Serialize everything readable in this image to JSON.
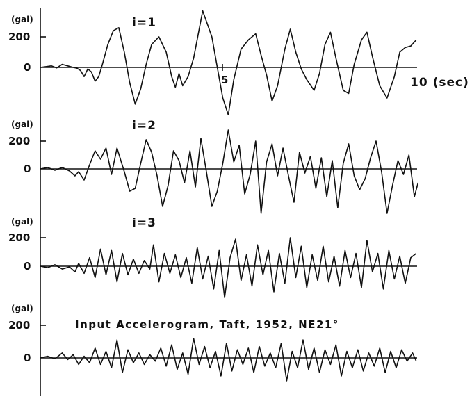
{
  "chart_data": {
    "type": "line",
    "title": "Input Accelerogram, Taft, 1952, NE21°",
    "x_axis": {
      "label": "10 (sec)",
      "tick_labels": [
        "5"
      ],
      "range": [
        0,
        10
      ],
      "unit": "sec"
    },
    "y_axis": {
      "unit": "(gal)",
      "tick_labels": [
        "200",
        "0"
      ]
    },
    "panels": [
      {
        "label": "i=1",
        "unit": "(gal)",
        "y_ticks": [
          "200",
          "0"
        ],
        "keypoints": [
          [
            0,
            0
          ],
          [
            0.15,
            5
          ],
          [
            0.3,
            10
          ],
          [
            0.45,
            -3
          ],
          [
            0.6,
            20
          ],
          [
            0.75,
            10
          ],
          [
            0.9,
            0
          ],
          [
            1.0,
            -5
          ],
          [
            1.1,
            -20
          ],
          [
            1.2,
            -60
          ],
          [
            1.3,
            -10
          ],
          [
            1.4,
            -30
          ],
          [
            1.5,
            -90
          ],
          [
            1.6,
            -60
          ],
          [
            1.7,
            20
          ],
          [
            1.85,
            150
          ],
          [
            2.0,
            240
          ],
          [
            2.15,
            260
          ],
          [
            2.3,
            100
          ],
          [
            2.45,
            -100
          ],
          [
            2.6,
            -240
          ],
          [
            2.75,
            -140
          ],
          [
            2.9,
            20
          ],
          [
            3.05,
            150
          ],
          [
            3.25,
            200
          ],
          [
            3.45,
            100
          ],
          [
            3.6,
            -60
          ],
          [
            3.7,
            -130
          ],
          [
            3.8,
            -40
          ],
          [
            3.9,
            -120
          ],
          [
            4.05,
            -60
          ],
          [
            4.2,
            60
          ],
          [
            4.45,
            370
          ],
          [
            4.7,
            200
          ],
          [
            4.85,
            0
          ],
          [
            5.0,
            -200
          ],
          [
            5.15,
            -310
          ],
          [
            5.3,
            -80
          ],
          [
            5.5,
            120
          ],
          [
            5.7,
            180
          ],
          [
            5.9,
            220
          ],
          [
            6.05,
            80
          ],
          [
            6.2,
            -50
          ],
          [
            6.35,
            -220
          ],
          [
            6.5,
            -120
          ],
          [
            6.7,
            120
          ],
          [
            6.85,
            250
          ],
          [
            7.0,
            100
          ],
          [
            7.15,
            -10
          ],
          [
            7.3,
            -80
          ],
          [
            7.5,
            -150
          ],
          [
            7.65,
            -40
          ],
          [
            7.8,
            150
          ],
          [
            7.95,
            230
          ],
          [
            8.1,
            60
          ],
          [
            8.3,
            -150
          ],
          [
            8.45,
            -170
          ],
          [
            8.6,
            20
          ],
          [
            8.8,
            180
          ],
          [
            8.95,
            230
          ],
          [
            9.1,
            70
          ],
          [
            9.3,
            -120
          ],
          [
            9.5,
            -200
          ],
          [
            9.7,
            -60
          ],
          [
            9.85,
            100
          ],
          [
            10.0,
            130
          ],
          [
            10.15,
            140
          ],
          [
            10.3,
            180
          ]
        ]
      },
      {
        "label": "i=2",
        "unit": "(gal)",
        "y_ticks": [
          "200",
          "0"
        ],
        "keypoints": [
          [
            0,
            0
          ],
          [
            0.2,
            10
          ],
          [
            0.4,
            -10
          ],
          [
            0.6,
            10
          ],
          [
            0.8,
            -15
          ],
          [
            0.95,
            -50
          ],
          [
            1.05,
            -20
          ],
          [
            1.2,
            -80
          ],
          [
            1.35,
            30
          ],
          [
            1.5,
            130
          ],
          [
            1.65,
            70
          ],
          [
            1.8,
            150
          ],
          [
            1.95,
            -40
          ],
          [
            2.1,
            150
          ],
          [
            2.3,
            -20
          ],
          [
            2.45,
            -160
          ],
          [
            2.6,
            -140
          ],
          [
            2.75,
            40
          ],
          [
            2.9,
            210
          ],
          [
            3.05,
            120
          ],
          [
            3.2,
            -50
          ],
          [
            3.35,
            -270
          ],
          [
            3.5,
            -120
          ],
          [
            3.65,
            130
          ],
          [
            3.8,
            60
          ],
          [
            3.95,
            -100
          ],
          [
            4.1,
            130
          ],
          [
            4.25,
            -130
          ],
          [
            4.4,
            220
          ],
          [
            4.55,
            -20
          ],
          [
            4.7,
            -270
          ],
          [
            4.85,
            -160
          ],
          [
            5.0,
            40
          ],
          [
            5.15,
            280
          ],
          [
            5.3,
            50
          ],
          [
            5.45,
            170
          ],
          [
            5.6,
            -180
          ],
          [
            5.75,
            -40
          ],
          [
            5.9,
            200
          ],
          [
            6.05,
            -320
          ],
          [
            6.2,
            50
          ],
          [
            6.35,
            180
          ],
          [
            6.5,
            -50
          ],
          [
            6.65,
            150
          ],
          [
            6.8,
            -50
          ],
          [
            6.95,
            -240
          ],
          [
            7.1,
            120
          ],
          [
            7.25,
            -30
          ],
          [
            7.4,
            90
          ],
          [
            7.55,
            -140
          ],
          [
            7.7,
            80
          ],
          [
            7.85,
            -200
          ],
          [
            8.0,
            60
          ],
          [
            8.15,
            -280
          ],
          [
            8.3,
            40
          ],
          [
            8.45,
            180
          ],
          [
            8.6,
            -50
          ],
          [
            8.75,
            -150
          ],
          [
            8.9,
            -70
          ],
          [
            9.05,
            80
          ],
          [
            9.2,
            200
          ],
          [
            9.35,
            -20
          ],
          [
            9.5,
            -320
          ],
          [
            9.65,
            -120
          ],
          [
            9.8,
            60
          ],
          [
            9.95,
            -40
          ],
          [
            10.1,
            100
          ],
          [
            10.25,
            -200
          ],
          [
            10.35,
            -100
          ]
        ]
      },
      {
        "label": "i=3",
        "unit": "(gal)",
        "y_ticks": [
          "200",
          "0"
        ],
        "keypoints": [
          [
            0,
            0
          ],
          [
            0.2,
            -10
          ],
          [
            0.4,
            10
          ],
          [
            0.6,
            -20
          ],
          [
            0.8,
            -5
          ],
          [
            0.95,
            -40
          ],
          [
            1.05,
            20
          ],
          [
            1.2,
            -50
          ],
          [
            1.35,
            60
          ],
          [
            1.5,
            -80
          ],
          [
            1.65,
            120
          ],
          [
            1.8,
            -60
          ],
          [
            1.95,
            110
          ],
          [
            2.1,
            -110
          ],
          [
            2.25,
            90
          ],
          [
            2.4,
            -60
          ],
          [
            2.55,
            50
          ],
          [
            2.7,
            -50
          ],
          [
            2.85,
            40
          ],
          [
            3.0,
            -20
          ],
          [
            3.1,
            150
          ],
          [
            3.25,
            -110
          ],
          [
            3.4,
            90
          ],
          [
            3.55,
            -50
          ],
          [
            3.7,
            80
          ],
          [
            3.85,
            -80
          ],
          [
            4.0,
            60
          ],
          [
            4.15,
            -120
          ],
          [
            4.3,
            130
          ],
          [
            4.45,
            -90
          ],
          [
            4.6,
            70
          ],
          [
            4.75,
            -160
          ],
          [
            4.9,
            110
          ],
          [
            5.05,
            -220
          ],
          [
            5.2,
            60
          ],
          [
            5.35,
            190
          ],
          [
            5.5,
            -100
          ],
          [
            5.65,
            80
          ],
          [
            5.8,
            -140
          ],
          [
            5.95,
            150
          ],
          [
            6.1,
            -60
          ],
          [
            6.25,
            110
          ],
          [
            6.4,
            -180
          ],
          [
            6.55,
            90
          ],
          [
            6.7,
            -120
          ],
          [
            6.85,
            200
          ],
          [
            7.0,
            -80
          ],
          [
            7.15,
            140
          ],
          [
            7.3,
            -150
          ],
          [
            7.45,
            80
          ],
          [
            7.6,
            -100
          ],
          [
            7.75,
            140
          ],
          [
            7.9,
            -110
          ],
          [
            8.05,
            70
          ],
          [
            8.2,
            -140
          ],
          [
            8.35,
            110
          ],
          [
            8.5,
            -80
          ],
          [
            8.65,
            90
          ],
          [
            8.8,
            -150
          ],
          [
            8.95,
            180
          ],
          [
            9.1,
            -40
          ],
          [
            9.25,
            90
          ],
          [
            9.4,
            -160
          ],
          [
            9.55,
            110
          ],
          [
            9.7,
            -90
          ],
          [
            9.85,
            70
          ],
          [
            10.0,
            -120
          ],
          [
            10.15,
            60
          ],
          [
            10.3,
            90
          ]
        ]
      },
      {
        "label": "Input Accelerogram, Taft, 1952, NE21°",
        "unit": "(gal)",
        "y_ticks": [
          "200",
          "0"
        ],
        "keypoints": [
          [
            0,
            0
          ],
          [
            0.2,
            10
          ],
          [
            0.4,
            -5
          ],
          [
            0.6,
            30
          ],
          [
            0.75,
            -10
          ],
          [
            0.9,
            20
          ],
          [
            1.05,
            -40
          ],
          [
            1.2,
            10
          ],
          [
            1.35,
            -30
          ],
          [
            1.5,
            60
          ],
          [
            1.65,
            -40
          ],
          [
            1.8,
            40
          ],
          [
            1.95,
            -60
          ],
          [
            2.1,
            110
          ],
          [
            2.25,
            -90
          ],
          [
            2.4,
            50
          ],
          [
            2.55,
            -30
          ],
          [
            2.7,
            30
          ],
          [
            2.85,
            -40
          ],
          [
            3.0,
            20
          ],
          [
            3.15,
            -20
          ],
          [
            3.3,
            60
          ],
          [
            3.45,
            -50
          ],
          [
            3.6,
            80
          ],
          [
            3.75,
            -70
          ],
          [
            3.9,
            30
          ],
          [
            4.05,
            -100
          ],
          [
            4.2,
            120
          ],
          [
            4.35,
            -40
          ],
          [
            4.5,
            70
          ],
          [
            4.65,
            -60
          ],
          [
            4.8,
            40
          ],
          [
            4.95,
            -110
          ],
          [
            5.1,
            90
          ],
          [
            5.25,
            -80
          ],
          [
            5.4,
            50
          ],
          [
            5.55,
            -40
          ],
          [
            5.7,
            60
          ],
          [
            5.85,
            -90
          ],
          [
            6.0,
            70
          ],
          [
            6.15,
            -50
          ],
          [
            6.3,
            30
          ],
          [
            6.45,
            -60
          ],
          [
            6.6,
            90
          ],
          [
            6.75,
            -140
          ],
          [
            6.9,
            40
          ],
          [
            7.05,
            -60
          ],
          [
            7.2,
            110
          ],
          [
            7.35,
            -70
          ],
          [
            7.5,
            60
          ],
          [
            7.65,
            -90
          ],
          [
            7.8,
            50
          ],
          [
            7.95,
            -40
          ],
          [
            8.1,
            80
          ],
          [
            8.25,
            -110
          ],
          [
            8.4,
            40
          ],
          [
            8.55,
            -60
          ],
          [
            8.7,
            50
          ],
          [
            8.85,
            -80
          ],
          [
            9.0,
            30
          ],
          [
            9.15,
            -50
          ],
          [
            9.3,
            60
          ],
          [
            9.45,
            -90
          ],
          [
            9.6,
            40
          ],
          [
            9.75,
            -60
          ],
          [
            9.9,
            50
          ],
          [
            10.05,
            -20
          ],
          [
            10.2,
            30
          ],
          [
            10.3,
            -20
          ]
        ]
      }
    ]
  },
  "labels": {
    "p1_unit": "(gal)",
    "p1_y200": "200",
    "p1_y0": "0",
    "p1_title": "i=1",
    "x_mid": "5",
    "x_end": "10 (sec)",
    "p2_unit": "(gal)",
    "p2_y200": "200",
    "p2_y0": "0",
    "p2_title": "i=2",
    "p3_unit": "(gal)",
    "p3_y200": "200",
    "p3_y0": "0",
    "p3_title": "i=3",
    "p4_unit": "(gal)",
    "p4_y200": "200",
    "p4_y0": "0",
    "p4_title": "Input Accelerogram, Taft, 1952, NE21°"
  }
}
